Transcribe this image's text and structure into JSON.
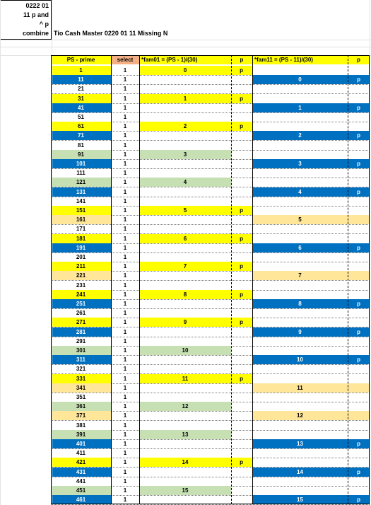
{
  "header_cell": [
    "0222 01",
    "11 p and",
    "^ p",
    "combine"
  ],
  "title": "Tio Cash Master 0220 01 11 Missing N",
  "columns": {
    "ps": "PS - prime",
    "select": "select",
    "fam01": "*fam01 =  (PS - 1)/(30)",
    "p1": "p",
    "fam11": "*fam11 =  (PS - 11)/(30)",
    "p2": "p"
  },
  "colors": {
    "yellow": "#ffff00",
    "blue": "#0070c0",
    "green": "#c6e0b4",
    "tan": "#ffe699",
    "orange": "#f4b084",
    "white": "#ffffff"
  },
  "rows": [
    {
      "ps": "1",
      "ps_color": "yellow",
      "select": "1",
      "f1": "0",
      "f1_color": "yellow",
      "p1": "p",
      "f11": "",
      "f11_color": "",
      "p2": "",
      "p2_color": ""
    },
    {
      "ps": "11",
      "ps_color": "blue",
      "select": "1",
      "f1": "",
      "f1_color": "",
      "p1": "",
      "f11": "0",
      "f11_color": "blue",
      "p2": "p",
      "p2_color": "blue"
    },
    {
      "ps": "21",
      "ps_color": "",
      "select": "1",
      "f1": "",
      "f1_color": "",
      "p1": "",
      "f11": "",
      "f11_color": "",
      "p2": "",
      "p2_color": ""
    },
    {
      "ps": "31",
      "ps_color": "yellow",
      "select": "1",
      "f1": "1",
      "f1_color": "yellow",
      "p1": "p",
      "f11": "",
      "f11_color": "",
      "p2": "",
      "p2_color": ""
    },
    {
      "ps": "41",
      "ps_color": "blue",
      "select": "1",
      "f1": "",
      "f1_color": "",
      "p1": "",
      "f11": "1",
      "f11_color": "blue",
      "p2": "p",
      "p2_color": "blue"
    },
    {
      "ps": "51",
      "ps_color": "",
      "select": "1",
      "f1": "",
      "f1_color": "",
      "p1": "",
      "f11": "",
      "f11_color": "",
      "p2": "",
      "p2_color": ""
    },
    {
      "ps": "61",
      "ps_color": "yellow",
      "select": "1",
      "f1": "2",
      "f1_color": "yellow",
      "p1": "p",
      "f11": "",
      "f11_color": "",
      "p2": "",
      "p2_color": ""
    },
    {
      "ps": "71",
      "ps_color": "blue",
      "select": "1",
      "f1": "",
      "f1_color": "",
      "p1": "",
      "f11": "2",
      "f11_color": "blue",
      "p2": "p",
      "p2_color": "blue"
    },
    {
      "ps": "81",
      "ps_color": "",
      "select": "1",
      "f1": "",
      "f1_color": "",
      "p1": "",
      "f11": "",
      "f11_color": "",
      "p2": "",
      "p2_color": ""
    },
    {
      "ps": "91",
      "ps_color": "green",
      "select": "1",
      "f1": "3",
      "f1_color": "green",
      "p1": "",
      "f11": "",
      "f11_color": "",
      "p2": "",
      "p2_color": ""
    },
    {
      "ps": "101",
      "ps_color": "blue",
      "select": "1",
      "f1": "",
      "f1_color": "",
      "p1": "",
      "f11": "3",
      "f11_color": "blue",
      "p2": "p",
      "p2_color": "blue"
    },
    {
      "ps": "111",
      "ps_color": "",
      "select": "1",
      "f1": "",
      "f1_color": "",
      "p1": "",
      "f11": "",
      "f11_color": "",
      "p2": "",
      "p2_color": ""
    },
    {
      "ps": "121",
      "ps_color": "green",
      "select": "1",
      "f1": "4",
      "f1_color": "green",
      "p1": "",
      "f11": "",
      "f11_color": "",
      "p2": "",
      "p2_color": ""
    },
    {
      "ps": "131",
      "ps_color": "blue",
      "select": "1",
      "f1": "",
      "f1_color": "",
      "p1": "",
      "f11": "4",
      "f11_color": "blue",
      "p2": "p",
      "p2_color": "blue"
    },
    {
      "ps": "141",
      "ps_color": "",
      "select": "1",
      "f1": "",
      "f1_color": "",
      "p1": "",
      "f11": "",
      "f11_color": "",
      "p2": "",
      "p2_color": ""
    },
    {
      "ps": "151",
      "ps_color": "yellow",
      "select": "1",
      "f1": "5",
      "f1_color": "yellow",
      "p1": "p",
      "f11": "",
      "f11_color": "",
      "p2": "",
      "p2_color": ""
    },
    {
      "ps": "161",
      "ps_color": "tan",
      "select": "1",
      "f1": "",
      "f1_color": "",
      "p1": "",
      "f11": "5",
      "f11_color": "tan",
      "p2": "",
      "p2_color": "tan"
    },
    {
      "ps": "171",
      "ps_color": "",
      "select": "1",
      "f1": "",
      "f1_color": "",
      "p1": "",
      "f11": "",
      "f11_color": "",
      "p2": "",
      "p2_color": ""
    },
    {
      "ps": "181",
      "ps_color": "yellow",
      "select": "1",
      "f1": "6",
      "f1_color": "yellow",
      "p1": "p",
      "f11": "",
      "f11_color": "",
      "p2": "",
      "p2_color": ""
    },
    {
      "ps": "191",
      "ps_color": "blue",
      "select": "1",
      "f1": "",
      "f1_color": "",
      "p1": "",
      "f11": "6",
      "f11_color": "blue",
      "p2": "p",
      "p2_color": "blue"
    },
    {
      "ps": "201",
      "ps_color": "",
      "select": "1",
      "f1": "",
      "f1_color": "",
      "p1": "",
      "f11": "",
      "f11_color": "",
      "p2": "",
      "p2_color": ""
    },
    {
      "ps": "211",
      "ps_color": "yellow",
      "select": "1",
      "f1": "7",
      "f1_color": "yellow",
      "p1": "p",
      "f11": "",
      "f11_color": "",
      "p2": "",
      "p2_color": ""
    },
    {
      "ps": "221",
      "ps_color": "tan",
      "select": "1",
      "f1": "",
      "f1_color": "",
      "p1": "",
      "f11": "7",
      "f11_color": "tan",
      "p2": "",
      "p2_color": "tan"
    },
    {
      "ps": "231",
      "ps_color": "",
      "select": "1",
      "f1": "",
      "f1_color": "",
      "p1": "",
      "f11": "",
      "f11_color": "",
      "p2": "",
      "p2_color": ""
    },
    {
      "ps": "241",
      "ps_color": "yellow",
      "select": "1",
      "f1": "8",
      "f1_color": "yellow",
      "p1": "p",
      "f11": "",
      "f11_color": "",
      "p2": "",
      "p2_color": ""
    },
    {
      "ps": "251",
      "ps_color": "blue",
      "select": "1",
      "f1": "",
      "f1_color": "",
      "p1": "",
      "f11": "8",
      "f11_color": "blue",
      "p2": "p",
      "p2_color": "blue"
    },
    {
      "ps": "261",
      "ps_color": "",
      "select": "1",
      "f1": "",
      "f1_color": "",
      "p1": "",
      "f11": "",
      "f11_color": "",
      "p2": "",
      "p2_color": ""
    },
    {
      "ps": "271",
      "ps_color": "yellow",
      "select": "1",
      "f1": "9",
      "f1_color": "yellow",
      "p1": "p",
      "f11": "",
      "f11_color": "",
      "p2": "",
      "p2_color": ""
    },
    {
      "ps": "281",
      "ps_color": "blue",
      "select": "1",
      "f1": "",
      "f1_color": "",
      "p1": "",
      "f11": "9",
      "f11_color": "blue",
      "p2": "p",
      "p2_color": "blue"
    },
    {
      "ps": "291",
      "ps_color": "",
      "select": "1",
      "f1": "",
      "f1_color": "",
      "p1": "",
      "f11": "",
      "f11_color": "",
      "p2": "",
      "p2_color": ""
    },
    {
      "ps": "301",
      "ps_color": "green",
      "select": "1",
      "f1": "10",
      "f1_color": "green",
      "p1": "",
      "f11": "",
      "f11_color": "",
      "p2": "",
      "p2_color": ""
    },
    {
      "ps": "311",
      "ps_color": "blue",
      "select": "1",
      "f1": "",
      "f1_color": "",
      "p1": "",
      "f11": "10",
      "f11_color": "blue",
      "p2": "p",
      "p2_color": "blue"
    },
    {
      "ps": "321",
      "ps_color": "",
      "select": "1",
      "f1": "",
      "f1_color": "",
      "p1": "",
      "f11": "",
      "f11_color": "",
      "p2": "",
      "p2_color": ""
    },
    {
      "ps": "331",
      "ps_color": "yellow",
      "select": "1",
      "f1": "11",
      "f1_color": "yellow",
      "p1": "p",
      "f11": "",
      "f11_color": "",
      "p2": "",
      "p2_color": ""
    },
    {
      "ps": "341",
      "ps_color": "tan",
      "select": "1",
      "f1": "",
      "f1_color": "",
      "p1": "",
      "f11": "11",
      "f11_color": "tan",
      "p2": "",
      "p2_color": "tan"
    },
    {
      "ps": "351",
      "ps_color": "",
      "select": "1",
      "f1": "",
      "f1_color": "",
      "p1": "",
      "f11": "",
      "f11_color": "",
      "p2": "",
      "p2_color": ""
    },
    {
      "ps": "361",
      "ps_color": "green",
      "select": "1",
      "f1": "12",
      "f1_color": "green",
      "p1": "",
      "f11": "",
      "f11_color": "",
      "p2": "",
      "p2_color": ""
    },
    {
      "ps": "371",
      "ps_color": "tan",
      "select": "1",
      "f1": "",
      "f1_color": "",
      "p1": "",
      "f11": "12",
      "f11_color": "tan",
      "p2": "",
      "p2_color": "tan"
    },
    {
      "ps": "381",
      "ps_color": "",
      "select": "1",
      "f1": "",
      "f1_color": "",
      "p1": "",
      "f11": "",
      "f11_color": "",
      "p2": "",
      "p2_color": ""
    },
    {
      "ps": "391",
      "ps_color": "green",
      "select": "1",
      "f1": "13",
      "f1_color": "green",
      "p1": "",
      "f11": "",
      "f11_color": "",
      "p2": "",
      "p2_color": ""
    },
    {
      "ps": "401",
      "ps_color": "blue",
      "select": "1",
      "f1": "",
      "f1_color": "",
      "p1": "",
      "f11": "13",
      "f11_color": "blue",
      "p2": "p",
      "p2_color": "blue"
    },
    {
      "ps": "411",
      "ps_color": "",
      "select": "1",
      "f1": "",
      "f1_color": "",
      "p1": "",
      "f11": "",
      "f11_color": "",
      "p2": "",
      "p2_color": ""
    },
    {
      "ps": "421",
      "ps_color": "yellow",
      "select": "1",
      "f1": "14",
      "f1_color": "yellow",
      "p1": "p",
      "f11": "",
      "f11_color": "",
      "p2": "",
      "p2_color": ""
    },
    {
      "ps": "431",
      "ps_color": "blue",
      "select": "1",
      "f1": "",
      "f1_color": "",
      "p1": "",
      "f11": "14",
      "f11_color": "blue",
      "p2": "p",
      "p2_color": "blue"
    },
    {
      "ps": "441",
      "ps_color": "",
      "select": "1",
      "f1": "",
      "f1_color": "",
      "p1": "",
      "f11": "",
      "f11_color": "",
      "p2": "",
      "p2_color": ""
    },
    {
      "ps": "451",
      "ps_color": "green",
      "select": "1",
      "f1": "15",
      "f1_color": "green",
      "p1": "",
      "f11": "",
      "f11_color": "",
      "p2": "",
      "p2_color": ""
    },
    {
      "ps": "461",
      "ps_color": "blue",
      "select": "1",
      "f1": "",
      "f1_color": "",
      "p1": "",
      "f11": "15",
      "f11_color": "blue",
      "p2": "p",
      "p2_color": "blue"
    }
  ]
}
